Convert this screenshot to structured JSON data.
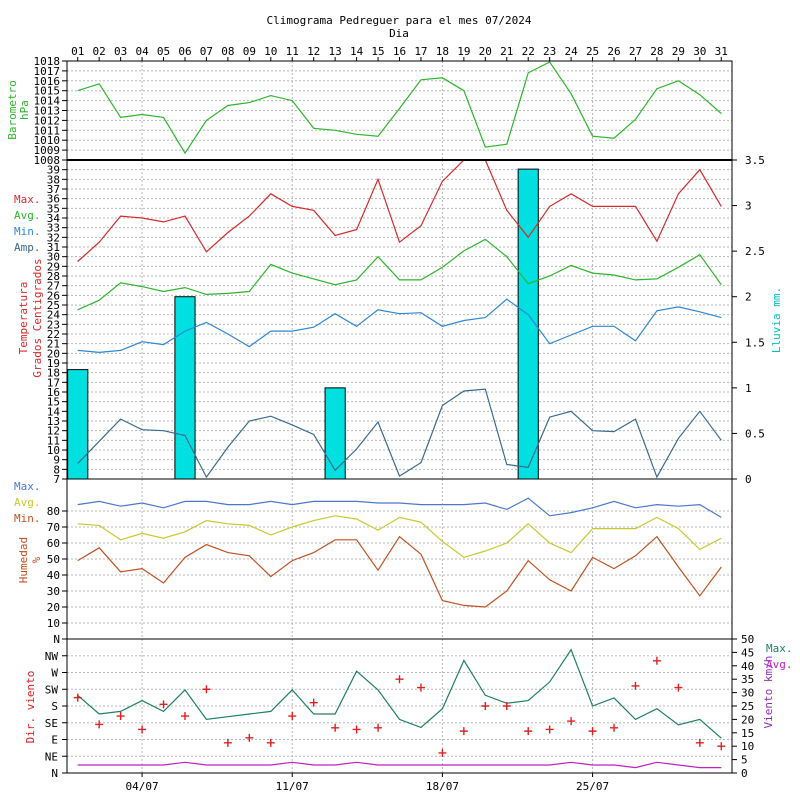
{
  "header": {
    "title": "Climograma Pedreguer para el mes 07/2024",
    "subtitle": "Dia"
  },
  "colors": {
    "pressure": "#2db52d",
    "temp_max": "#d42a2a",
    "temp_avg": "#2db52d",
    "temp_min": "#2e86d4",
    "temp_amp": "#3a6a8f",
    "rain": "#00e0e0",
    "hum_max": "#4a78d0",
    "hum_avg": "#c8c830",
    "hum_min": "#c05020",
    "wind_max": "#1e8060",
    "wind_avg": "#c020c0",
    "wind_dir": "#e02020",
    "rain_axis": "#00c0c0",
    "wind_axis": "#9030c0",
    "grid": "#b8b8b8",
    "frame": "#000000"
  },
  "chart_data": [
    {
      "type": "line",
      "name": "barometro",
      "ylabel": [
        "Barometro",
        "hPa"
      ],
      "ylim": [
        1008,
        1018
      ],
      "yticks": [
        "1008",
        "1009",
        "1010",
        "1011",
        "1012",
        "1013",
        "1014",
        "1015",
        "1016",
        "1017",
        "1018"
      ],
      "x": [
        "01",
        "02",
        "03",
        "04",
        "05",
        "06",
        "07",
        "08",
        "09",
        "10",
        "11",
        "12",
        "13",
        "14",
        "15",
        "16",
        "17",
        "18",
        "19",
        "20",
        "21",
        "22",
        "23",
        "24",
        "25",
        "26",
        "27",
        "28",
        "29",
        "30",
        "31"
      ],
      "series": [
        {
          "values": [
            1015.0,
            1015.7,
            1012.3,
            1012.6,
            1012.3,
            1008.7,
            1012.0,
            1013.5,
            1013.8,
            1014.5,
            1014.0,
            1011.2,
            1011.0,
            1010.6,
            1010.4,
            1013.2,
            1016.1,
            1016.3,
            1015.0,
            1009.3,
            1009.6,
            1016.8,
            1017.9,
            1014.7,
            1010.4,
            1010.2,
            1012.1,
            1015.2,
            1016.0,
            1014.6,
            1012.7
          ]
        }
      ],
      "grid": true
    },
    {
      "type": "line+bar",
      "name": "temperatura",
      "ylabel": [
        "Temperatura",
        "Grados Centigrados"
      ],
      "ylabel_right": "Lluvia mm.",
      "ylim": [
        7,
        40
      ],
      "yticks": [
        "7",
        "8",
        "9",
        "10",
        "11",
        "12",
        "13",
        "14",
        "15",
        "16",
        "17",
        "18",
        "19",
        "20",
        "21",
        "22",
        "23",
        "24",
        "25",
        "26",
        "27",
        "28",
        "29",
        "30",
        "31",
        "32",
        "33",
        "34",
        "35",
        "36",
        "37",
        "38",
        "39"
      ],
      "ylim_right": [
        0,
        3.5
      ],
      "yticks_right": [
        "0",
        "0.5",
        "1",
        "1.5",
        "2",
        "2.5",
        "3",
        "3.5"
      ],
      "legend": [
        "Max.",
        "Avg.",
        "Min.",
        "Amp."
      ],
      "series": [
        {
          "name": "Max.",
          "values": [
            29.5,
            31.5,
            34.2,
            34.0,
            33.6,
            34.2,
            30.5,
            32.5,
            34.2,
            36.5,
            35.2,
            34.8,
            32.2,
            32.8,
            38.0,
            31.5,
            33.2,
            37.8,
            40.2,
            40.8,
            34.8,
            32.0,
            35.2,
            36.5,
            35.2,
            35.2,
            35.2,
            31.6,
            36.5,
            39.0,
            35.2
          ]
        },
        {
          "name": "Avg.",
          "values": [
            24.5,
            25.5,
            27.3,
            26.9,
            26.4,
            26.8,
            26.1,
            26.2,
            26.4,
            29.2,
            28.3,
            27.7,
            27.1,
            27.6,
            30.0,
            27.6,
            27.6,
            28.9,
            30.6,
            31.8,
            30.0,
            27.2,
            28.0,
            29.1,
            28.3,
            28.1,
            27.6,
            27.7,
            28.9,
            30.2,
            27.1
          ]
        },
        {
          "name": "Min.",
          "values": [
            20.3,
            20.1,
            20.3,
            21.2,
            20.9,
            22.3,
            23.2,
            22.0,
            20.7,
            22.3,
            22.3,
            22.7,
            24.1,
            22.8,
            24.5,
            24.1,
            24.2,
            22.8,
            23.4,
            23.7,
            25.6,
            24.0,
            21.0,
            21.9,
            22.8,
            22.8,
            21.3,
            24.4,
            24.8,
            24.3,
            23.7
          ]
        },
        {
          "name": "Amp.",
          "values": [
            8.6,
            10.9,
            13.2,
            12.1,
            12.0,
            11.5,
            7.2,
            10.3,
            13.0,
            13.5,
            12.6,
            11.6,
            7.9,
            10.1,
            12.9,
            7.3,
            8.7,
            14.6,
            16.1,
            16.3,
            8.5,
            8.2,
            13.4,
            14.0,
            12.0,
            11.9,
            13.2,
            7.2,
            11.2,
            14.0,
            11.0
          ]
        },
        {
          "name": "Lluvia",
          "type": "bar",
          "values": [
            1.2,
            0,
            0,
            0,
            0,
            2.0,
            0,
            0,
            0,
            0,
            0,
            0,
            1.0,
            0,
            0,
            0,
            0,
            0,
            0,
            0,
            0,
            3.4,
            0,
            0,
            0,
            0,
            0,
            0,
            0,
            0,
            0
          ]
        }
      ],
      "grid": true
    },
    {
      "type": "line",
      "name": "humedad",
      "ylabel": [
        "Humedad",
        "%"
      ],
      "ylim": [
        0,
        100
      ],
      "yticks": [
        "N",
        "10",
        "20",
        "30",
        "40",
        "50",
        "60",
        "70",
        "80"
      ],
      "legend": [
        "Max.",
        "Avg.",
        "Min."
      ],
      "series": [
        {
          "name": "Max.",
          "values": [
            84,
            86,
            83,
            85,
            82,
            86,
            86,
            84,
            84,
            86,
            84,
            86,
            86,
            86,
            85,
            85,
            84,
            84,
            84,
            85,
            81,
            88,
            77,
            79,
            82,
            86,
            82,
            84,
            83,
            84,
            76
          ]
        },
        {
          "name": "Avg.",
          "values": [
            72,
            71,
            62,
            66,
            63,
            67,
            74,
            72,
            71,
            65,
            70,
            74,
            77,
            75,
            68,
            76,
            73,
            61,
            51,
            55,
            60,
            72,
            60,
            54,
            69,
            69,
            69,
            76,
            69,
            56,
            63
          ]
        },
        {
          "name": "Min.",
          "values": [
            49,
            57,
            42,
            44,
            35,
            51,
            59,
            54,
            52,
            39,
            49,
            54,
            62,
            62,
            43,
            64,
            53,
            24,
            21,
            20,
            30,
            49,
            37,
            30,
            51,
            44,
            52,
            64,
            45,
            27,
            45
          ]
        }
      ],
      "grid": true
    },
    {
      "type": "line+scatter",
      "name": "viento",
      "ylabel": "Dir. viento",
      "ylabel_right": "Viento km/h",
      "ylim": [
        0,
        50
      ],
      "yticks": [
        "N",
        "NE",
        "E",
        "SE",
        "S",
        "SW",
        "W",
        "NW"
      ],
      "yticks_right": [
        "0",
        "5",
        "10",
        "15",
        "20",
        "25",
        "30",
        "35",
        "40",
        "45",
        "50"
      ],
      "legend": [
        "Max.",
        "Avg."
      ],
      "series": [
        {
          "name": "Max.",
          "values": [
            29,
            22,
            23,
            27,
            23,
            31,
            20,
            21,
            22,
            23,
            31,
            22,
            22,
            38,
            31,
            20,
            17,
            24,
            42,
            29,
            26,
            27,
            34,
            46,
            25,
            28,
            20,
            24,
            18,
            20,
            13
          ]
        },
        {
          "name": "Avg.",
          "values": [
            3,
            3,
            3,
            3,
            3,
            4,
            3,
            3,
            3,
            3,
            4,
            3,
            3,
            4,
            3,
            3,
            3,
            3,
            3,
            3,
            3,
            3,
            3,
            4,
            3,
            3,
            2,
            4,
            3,
            2,
            2
          ]
        },
        {
          "name": "Dir.",
          "type": "scatter",
          "values": [
            4.5,
            2.9,
            3.4,
            2.6,
            4.1,
            3.4,
            5.0,
            1.8,
            2.1,
            1.8,
            3.4,
            4.2,
            2.7,
            2.6,
            2.7,
            5.6,
            5.1,
            1.2,
            2.5,
            4.0,
            4.0,
            2.5,
            2.6,
            3.1,
            2.5,
            2.7,
            5.2,
            6.7,
            5.1,
            1.8,
            1.6
          ]
        }
      ],
      "grid": true
    }
  ],
  "x_axis": {
    "days": [
      "01",
      "02",
      "03",
      "04",
      "05",
      "06",
      "07",
      "08",
      "09",
      "10",
      "11",
      "12",
      "13",
      "14",
      "15",
      "16",
      "17",
      "18",
      "19",
      "20",
      "21",
      "22",
      "23",
      "24",
      "25",
      "26",
      "27",
      "28",
      "29",
      "30",
      "31"
    ],
    "bottom_labels": [
      "04/07",
      "11/07",
      "18/07",
      "25/07"
    ]
  }
}
